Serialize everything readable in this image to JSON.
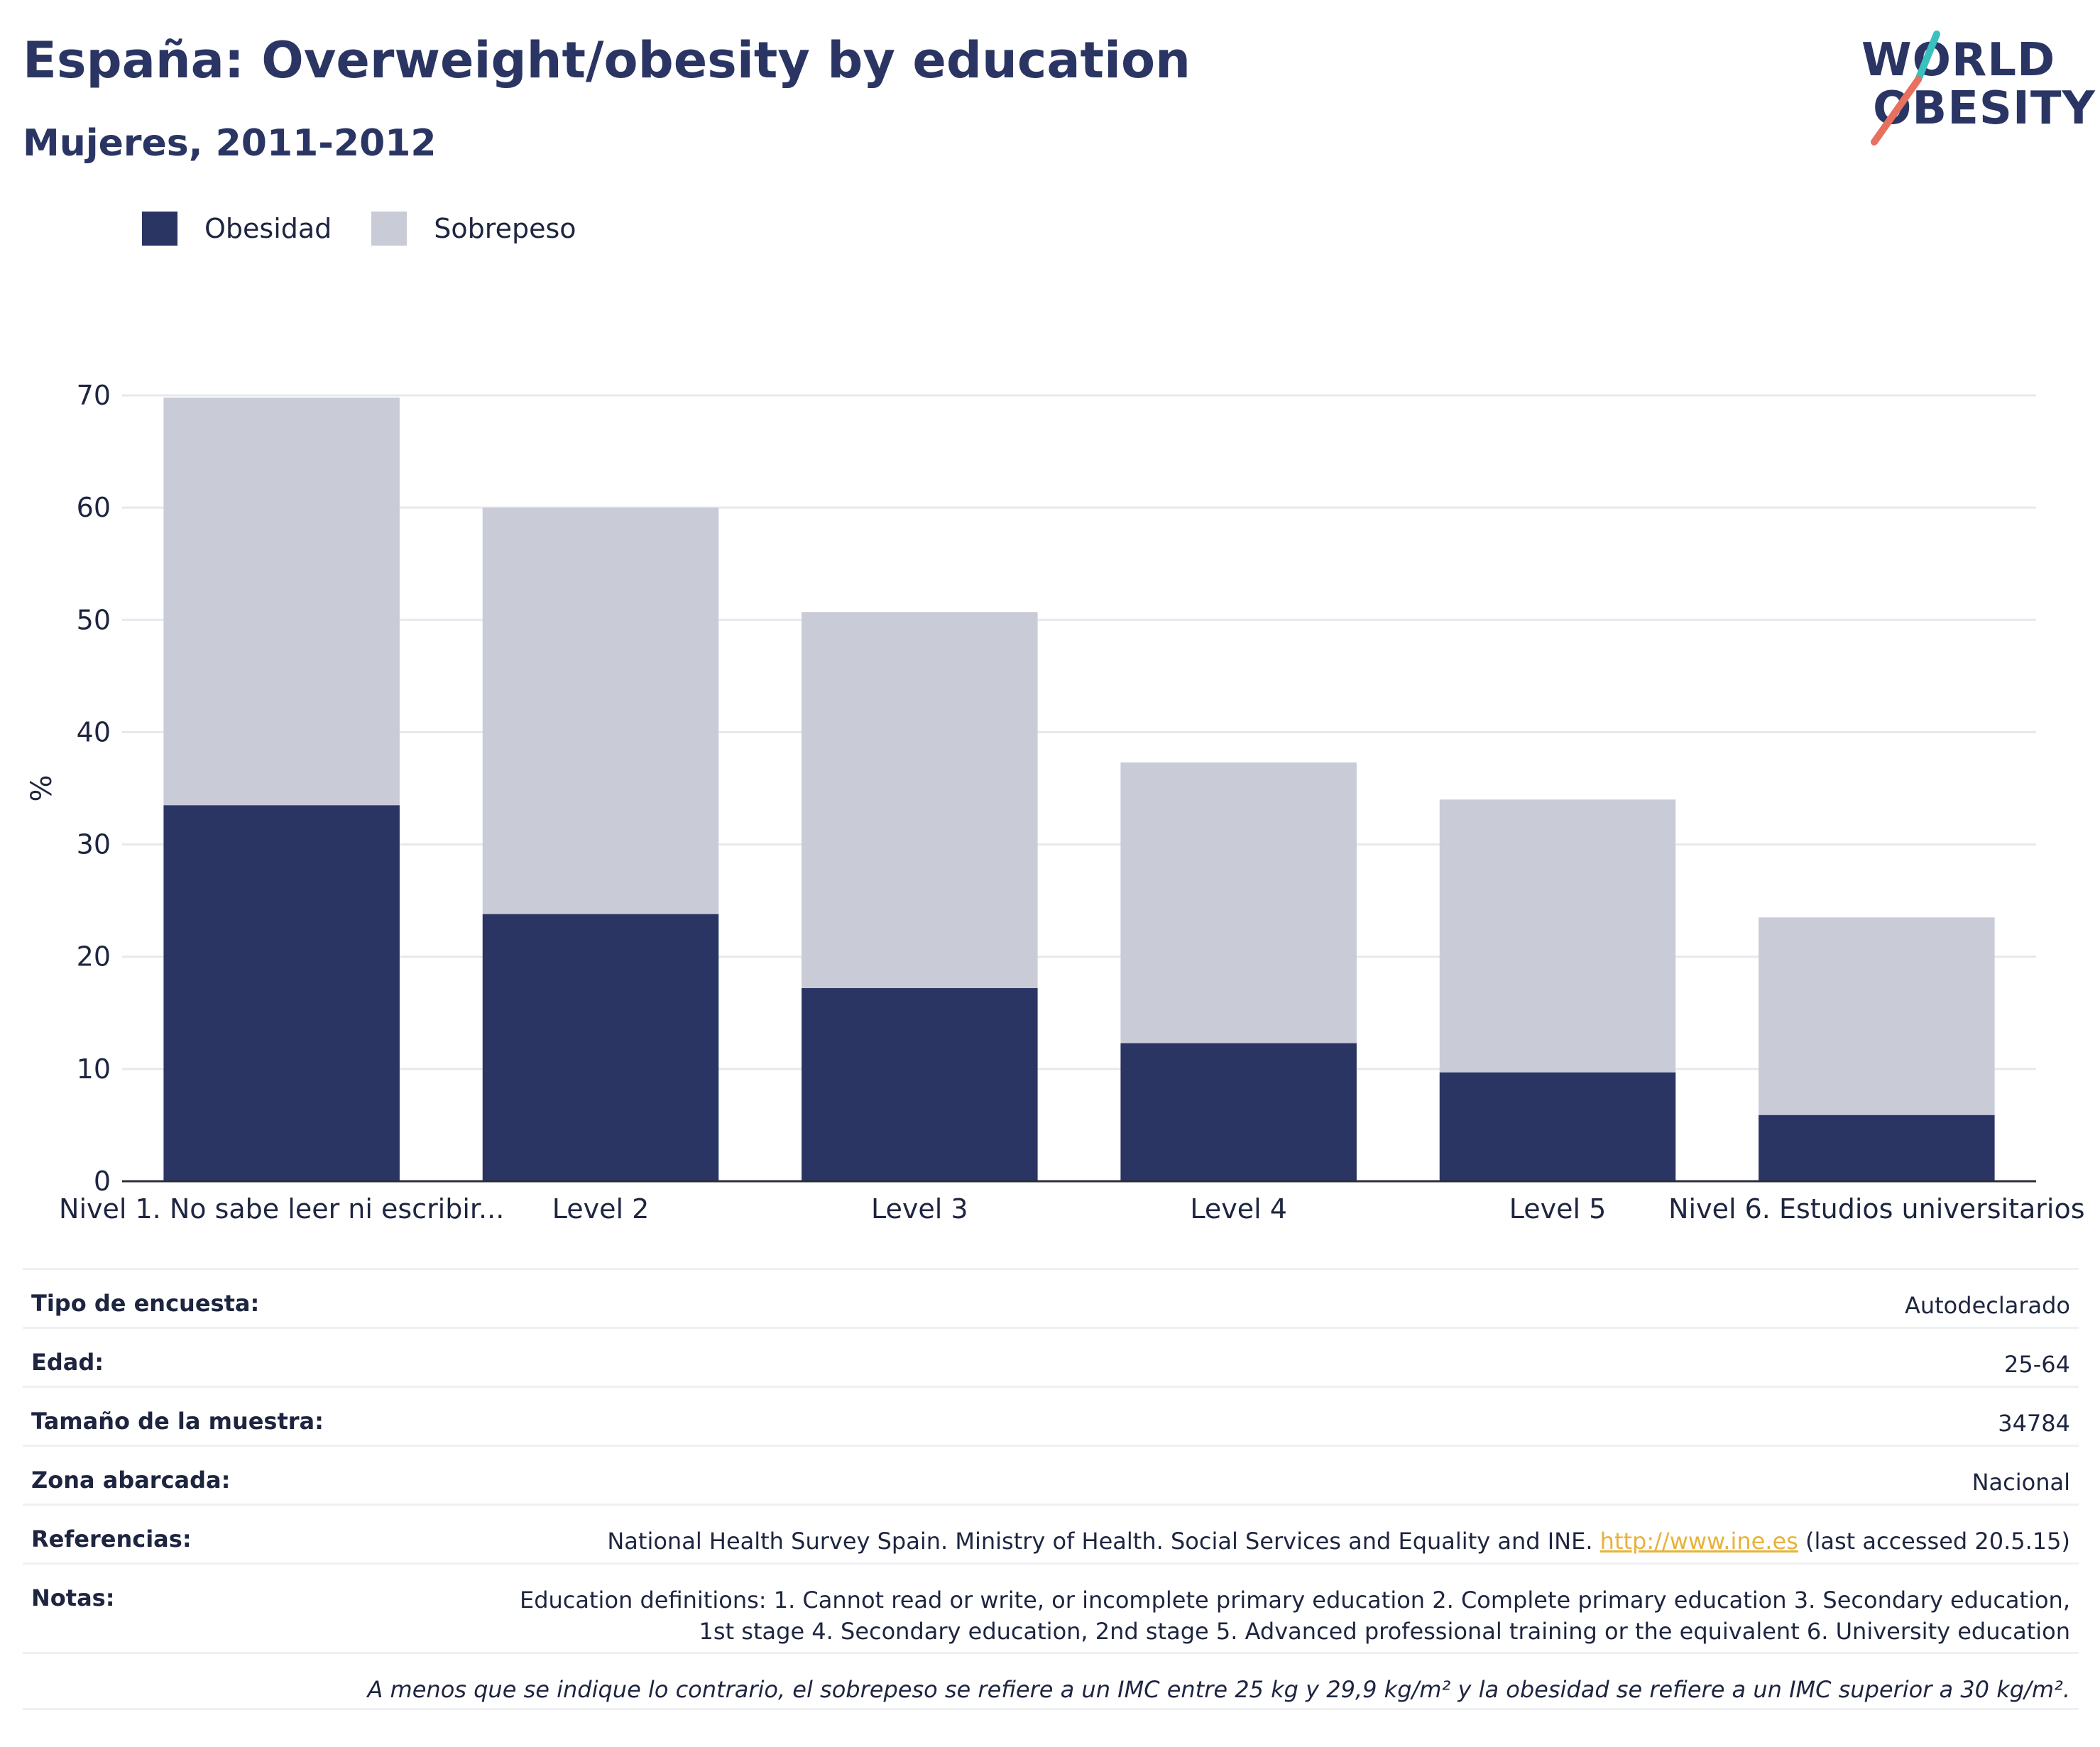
{
  "header": {
    "title": "España: Overweight/obesity by education",
    "subtitle": "Mujeres, 2011-2012"
  },
  "logo": {
    "line1": "WORLD",
    "line2": "OBESITY",
    "accent_teal": "#3bbfbf",
    "accent_coral": "#e8705e"
  },
  "colors": {
    "obesidad": "#2a3563",
    "sobrepeso": "#c9cbd7",
    "grid": "#e6e8ee",
    "axis": "#1e2540",
    "link": "#e8b23a"
  },
  "legend": [
    {
      "label": "Obesidad",
      "color": "#2a3563"
    },
    {
      "label": "Sobrepeso",
      "color": "#c9cbd7"
    }
  ],
  "chart_data": {
    "type": "bar",
    "stacked": true,
    "categories": [
      "Nivel 1. No sabe leer ni escribir...",
      "Level 2",
      "Level 3",
      "Level 4",
      "Level 5",
      "Nivel 6. Estudios universitarios"
    ],
    "series": [
      {
        "name": "Obesidad",
        "values": [
          33.5,
          23.8,
          17.2,
          12.3,
          9.7,
          5.9
        ]
      },
      {
        "name": "Sobrepeso",
        "values": [
          36.3,
          36.2,
          33.5,
          25.0,
          24.3,
          17.6
        ]
      }
    ],
    "totals": [
      69.8,
      60.0,
      50.7,
      37.3,
      34.0,
      23.5
    ],
    "ylabel": "%",
    "xlabel": "",
    "ylim": [
      0,
      70
    ],
    "yticks": [
      0,
      10,
      20,
      30,
      40,
      50,
      60,
      70
    ],
    "grid": true,
    "legend_position": "top-left"
  },
  "meta": {
    "tipo": {
      "key": "Tipo de encuesta:",
      "value": "Autodeclarado"
    },
    "edad": {
      "key": "Edad:",
      "value": "25-64"
    },
    "muestra": {
      "key": "Tamaño de la muestra:",
      "value": "34784"
    },
    "zona": {
      "key": "Zona abarcada:",
      "value": "Nacional"
    },
    "referencias": {
      "key": "Referencias:",
      "text_before": "National Health Survey Spain. Ministry of Health. Social Services and Equality and INE. ",
      "link": "http://www.ine.es",
      "text_after": " (last accessed 20.5.15)"
    },
    "notas": {
      "key": "Notas:",
      "line1": "Education definitions: 1. Cannot read or write, or incomplete primary education 2. Complete primary education 3. Secondary education,",
      "line2": "1st stage 4. Secondary education, 2nd stage 5. Advanced professional training or the equivalent 6. University education"
    },
    "footnote": "A menos que se indique lo contrario, el sobrepeso se refiere a un IMC entre 25 kg y 29,9 kg/m² y la obesidad se refiere a un IMC superior a 30 kg/m²."
  }
}
